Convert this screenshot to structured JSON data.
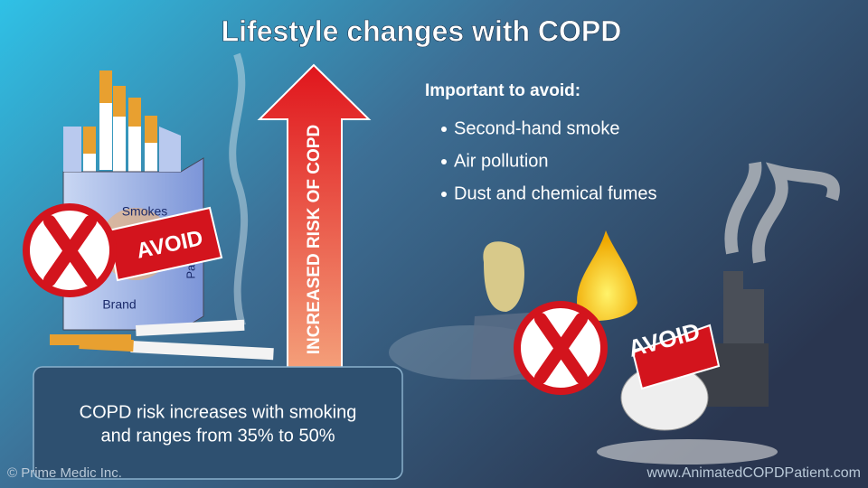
{
  "title": "Lifestyle changes with COPD",
  "avoid_list": {
    "heading": "Important to avoid:",
    "items": [
      "Second-hand smoke",
      "Air pollution",
      "Dust and chemical fumes"
    ]
  },
  "arrow_label": "INCREASED RISK OF COPD",
  "smoking_badge": "AVOID",
  "pollution_badge": "AVOID",
  "cigarette_pack": {
    "brand_top": "Smokes",
    "brand_bottom": "Brand",
    "side": "Pack Brand"
  },
  "info_box": {
    "lines": [
      "COPD risk increases with smoking",
      "and ranges from 35% to 50%"
    ]
  },
  "footer": {
    "left": "© Prime Medic Inc.",
    "right": "www.AnimatedCOPDPatient.com"
  }
}
